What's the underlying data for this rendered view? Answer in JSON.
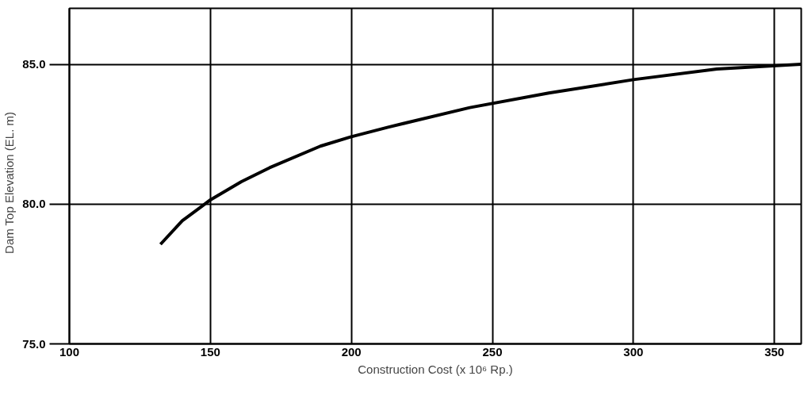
{
  "chart_data": {
    "type": "line",
    "xlabel": "Construction Cost (x 10⁶ Rp.)",
    "ylabel": "Dam Top Elevation     (EL. m)",
    "x": [
      132.3,
      140,
      150,
      161,
      171,
      189,
      199.7,
      213,
      242,
      270,
      300,
      329.6,
      359.4
    ],
    "series": [
      {
        "color": "#000000",
        "values": [
          78.56,
          79.4,
          80.15,
          80.8,
          81.3,
          82.07,
          82.4,
          82.75,
          83.45,
          83.97,
          84.45,
          84.83,
          85.0
        ]
      }
    ],
    "xlim": [
      100,
      359.5
    ],
    "ylim": [
      75,
      87
    ],
    "xticks": [
      100,
      150,
      200,
      250,
      300,
      350
    ],
    "yticks": [
      {
        "value": 75,
        "label": "75.0"
      },
      {
        "value": 80,
        "label": "80.0"
      },
      {
        "value": 85,
        "label": "85.0"
      }
    ],
    "grid": true,
    "marker": "none",
    "line_style": "solid"
  }
}
